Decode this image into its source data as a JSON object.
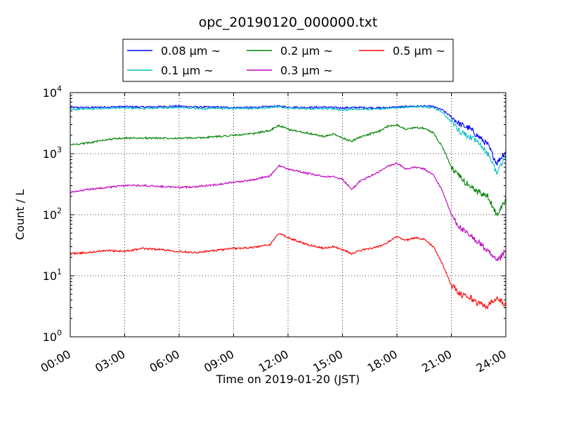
{
  "chart_data": {
    "type": "line",
    "title": "opc_20190120_000000.txt",
    "xlabel": "Time on 2019-01-20 (JST)",
    "ylabel": "Count / L",
    "x_unit": "hours",
    "xlim": [
      0,
      24
    ],
    "ylim": [
      1,
      10000
    ],
    "y_scale": "log",
    "grid": true,
    "legend_position": "top-center, above plot",
    "x_ticks": [
      "00:00",
      "03:00",
      "06:00",
      "09:00",
      "12:00",
      "15:00",
      "18:00",
      "21:00",
      "24:00"
    ],
    "y_ticks": [
      {
        "base": "10",
        "exp": "0"
      },
      {
        "base": "10",
        "exp": "1"
      },
      {
        "base": "10",
        "exp": "2"
      },
      {
        "base": "10",
        "exp": "3"
      },
      {
        "base": "10",
        "exp": "4"
      }
    ],
    "x": [
      0,
      1,
      2,
      3,
      4,
      5,
      6,
      7,
      8,
      9,
      10,
      11,
      11.5,
      12,
      13,
      14,
      14.5,
      15,
      15.5,
      16,
      17,
      17.5,
      18,
      18.5,
      19,
      19.5,
      20,
      20.5,
      21,
      21.5,
      22,
      22.5,
      23,
      23.5,
      24
    ],
    "series": [
      {
        "name": "0.08 μm ~",
        "color": "#0000ff",
        "values": [
          5700,
          5700,
          5800,
          5900,
          5800,
          5900,
          6000,
          5800,
          5800,
          5700,
          5700,
          5900,
          6000,
          5800,
          5700,
          5800,
          5700,
          5600,
          5700,
          5700,
          5600,
          5700,
          5800,
          5900,
          6000,
          6000,
          5900,
          5200,
          4000,
          3000,
          2600,
          1900,
          1400,
          700,
          1100
        ]
      },
      {
        "name": "0.1 μm ~",
        "color": "#00bfbf",
        "values": [
          5300,
          5400,
          5500,
          5600,
          5500,
          5600,
          5700,
          5500,
          5500,
          5500,
          5500,
          5700,
          5900,
          5600,
          5400,
          5500,
          5400,
          5100,
          5400,
          5400,
          5400,
          5500,
          5700,
          5800,
          5900,
          5900,
          5600,
          4800,
          3300,
          2300,
          1900,
          1500,
          1000,
          500,
          900
        ]
      },
      {
        "name": "0.2 μm ~",
        "color": "#008000",
        "values": [
          1400,
          1500,
          1700,
          1800,
          1800,
          1800,
          1800,
          1800,
          1900,
          2000,
          2100,
          2400,
          2900,
          2500,
          2200,
          1900,
          2100,
          1800,
          1600,
          1900,
          2300,
          2800,
          3000,
          2500,
          2700,
          2600,
          2200,
          1300,
          600,
          400,
          300,
          230,
          200,
          100,
          180
        ]
      },
      {
        "name": "0.3 μm ~",
        "color": "#bf00bf",
        "values": [
          230,
          260,
          280,
          300,
          300,
          290,
          280,
          290,
          310,
          340,
          370,
          430,
          640,
          560,
          480,
          420,
          430,
          380,
          260,
          360,
          500,
          620,
          700,
          560,
          600,
          560,
          450,
          250,
          100,
          60,
          45,
          36,
          25,
          17,
          25
        ]
      },
      {
        "name": "0.5 μm ~",
        "color": "#ff0000",
        "values": [
          23,
          24,
          26,
          25,
          28,
          27,
          25,
          24,
          26,
          28,
          29,
          32,
          50,
          42,
          33,
          28,
          30,
          27,
          23,
          26,
          30,
          35,
          44,
          38,
          42,
          40,
          30,
          16,
          7,
          5,
          4.5,
          3.5,
          3.2,
          4.5,
          3.2
        ]
      }
    ]
  }
}
